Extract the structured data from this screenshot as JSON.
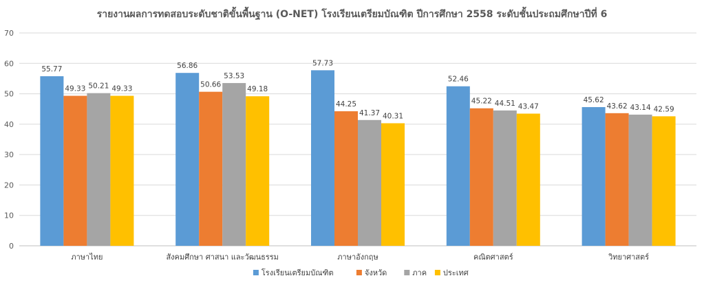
{
  "chart_data": {
    "type": "bar",
    "title": "รายงานผลการทดสอบระดับชาติขั้นพื้นฐาน (O-NET) โรงเรียนเตรียมบัณฑิต ปีการศึกษา 2558 ระดับชั้นประถมศึกษาปีที่ 6",
    "xlabel": "",
    "ylabel": "",
    "ylim": [
      0,
      70
    ],
    "yticks": [
      0,
      10,
      20,
      30,
      40,
      50,
      60,
      70
    ],
    "grid": true,
    "legend_position": "bottom",
    "categories": [
      "ภาษาไทย",
      "สังคมศึกษา ศาสนา และวัฒนธรรม",
      "ภาษาอังกฤษ",
      "คณิตศาสตร์",
      "วิทยาศาสตร์"
    ],
    "series": [
      {
        "name": "โรงเรียนเตรียมบัณฑิต",
        "color": "#5B9BD5",
        "values": [
          55.77,
          56.86,
          57.73,
          52.46,
          45.62
        ]
      },
      {
        "name": "จังหวัด",
        "color": "#ED7D31",
        "values": [
          49.33,
          50.66,
          44.25,
          45.22,
          43.62
        ]
      },
      {
        "name": "ภาค",
        "color": "#A5A5A5",
        "values": [
          50.21,
          53.53,
          41.37,
          44.51,
          43.14
        ]
      },
      {
        "name": "ประเทศ",
        "color": "#FFC000",
        "values": [
          49.33,
          49.18,
          40.31,
          43.47,
          42.59
        ]
      }
    ]
  }
}
